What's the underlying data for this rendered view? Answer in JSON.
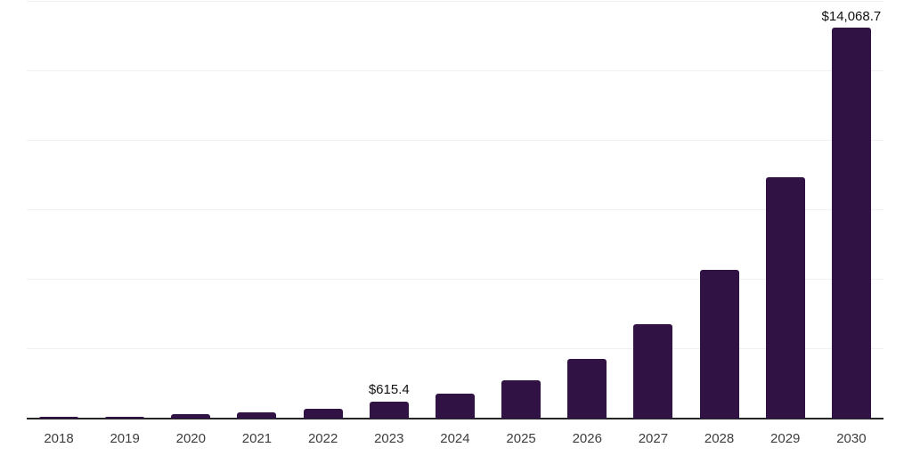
{
  "chart_data": {
    "type": "bar",
    "title": "",
    "xlabel": "",
    "ylabel": "",
    "categories": [
      "2018",
      "2019",
      "2020",
      "2021",
      "2022",
      "2023",
      "2024",
      "2025",
      "2026",
      "2027",
      "2028",
      "2029",
      "2030"
    ],
    "values": [
      50,
      65,
      165,
      235,
      345,
      615.4,
      905,
      1370,
      2150,
      3400,
      5350,
      8700,
      14068.7
    ],
    "value_labels": {
      "2023": "$615.4",
      "2030": "$14,068.7"
    },
    "ylim": [
      0,
      15000
    ],
    "gridline_step": 2500,
    "grid": "horizontal",
    "legend": "none",
    "colors": {
      "bar": "#311245",
      "gridline": "#f0f0f0",
      "axis_line": "#262626",
      "value_label": "#111111",
      "tick_label": "#3d3d3d"
    }
  }
}
